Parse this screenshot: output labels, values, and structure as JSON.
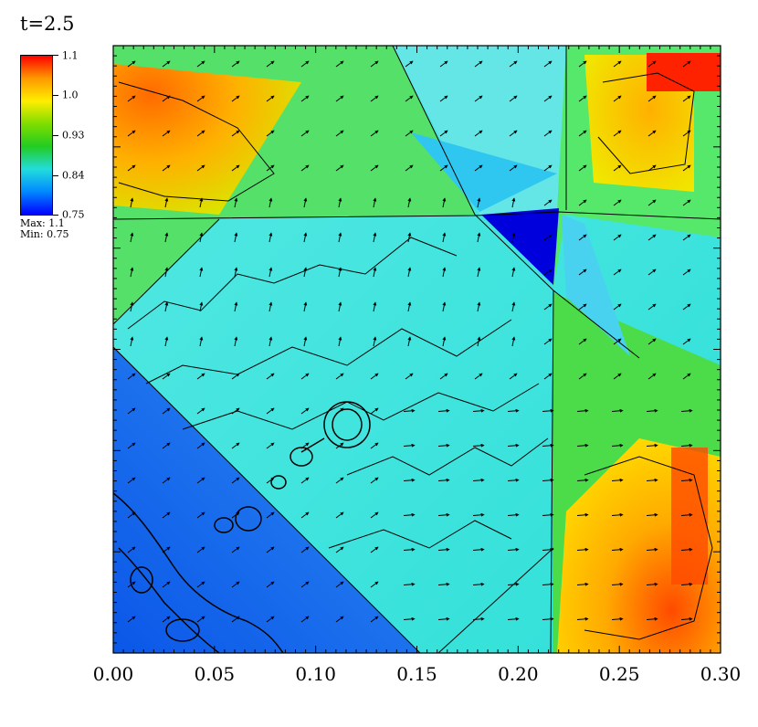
{
  "title": "t=2.5",
  "colorbar": {
    "ticks": [
      "1.1",
      "1.0",
      "0.93",
      "0.84",
      "0.75"
    ],
    "max_label": "Max:  1.1",
    "min_label": "Min:  0.75",
    "colors": [
      "#ff0000",
      "#ff9900",
      "#ffee00",
      "#7fdd00",
      "#22cc22",
      "#22dddd",
      "#0088ff",
      "#0000ff"
    ]
  },
  "chart_data": {
    "type": "heatmap",
    "title": "t=2.5",
    "xlabel": "",
    "ylabel": "",
    "x_ticks": [
      "0.00",
      "0.05",
      "0.10",
      "0.15",
      "0.20",
      "0.25",
      "0.30"
    ],
    "xlim": [
      0,
      0.3
    ],
    "ylim": [
      0,
      0.3
    ],
    "value_range": [
      0.75,
      1.1
    ],
    "regions": [
      {
        "name": "lower-left low region",
        "level": 0.76
      },
      {
        "name": "central region",
        "level": 0.84
      },
      {
        "name": "top-left corner",
        "level": 1.02
      },
      {
        "name": "bottom-right corner",
        "level": 1.03
      },
      {
        "name": "top-right corner",
        "level": 1.06
      },
      {
        "name": "dark triangle",
        "level": 0.75
      }
    ]
  }
}
